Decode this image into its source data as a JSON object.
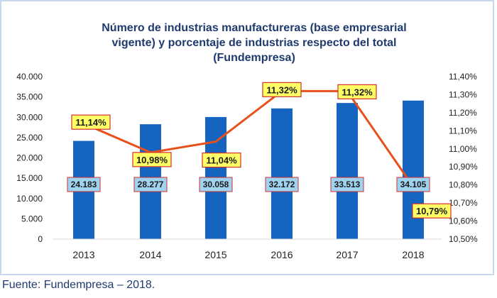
{
  "chart_data": {
    "type": "bar+line",
    "title_lines": [
      "Número de  industrias manufactureras (base empresarial",
      "vigente) y  porcentaje de industrias respecto del total",
      "(Fundempresa)"
    ],
    "categories": [
      "2013",
      "2014",
      "2015",
      "2016",
      "2017",
      "2018"
    ],
    "bar_values": [
      24183,
      28277,
      30058,
      32172,
      33513,
      34105
    ],
    "bar_labels": [
      "24.183",
      "28.277",
      "30.058",
      "32.172",
      "33.513",
      "34.105"
    ],
    "line_values": [
      11.14,
      10.98,
      11.04,
      11.32,
      11.32,
      10.79
    ],
    "line_labels": [
      "11,14%",
      "10,98%",
      "11,04%",
      "11,32%",
      "11,32%",
      "10,79%"
    ],
    "y_left": {
      "min": 0,
      "max": 40000,
      "ticks": [
        "0",
        "5.000",
        "10.000",
        "15.000",
        "20.000",
        "25.000",
        "30.000",
        "35.000",
        "40.000"
      ]
    },
    "y_right": {
      "min": 10.5,
      "max": 11.4,
      "ticks": [
        "10,50%",
        "10,60%",
        "10,70%",
        "10,80%",
        "10,90%",
        "11,00%",
        "11,10%",
        "11,20%",
        "11,30%",
        "11,40%"
      ]
    },
    "colors": {
      "bar": "#1565c0",
      "line": "#e8501c",
      "bar_label_bg": "#9fd3f0",
      "line_label_bg": "#ffff66",
      "label_border": "#d32f2f"
    }
  },
  "source": "Fuente: Fundempresa – 2018."
}
